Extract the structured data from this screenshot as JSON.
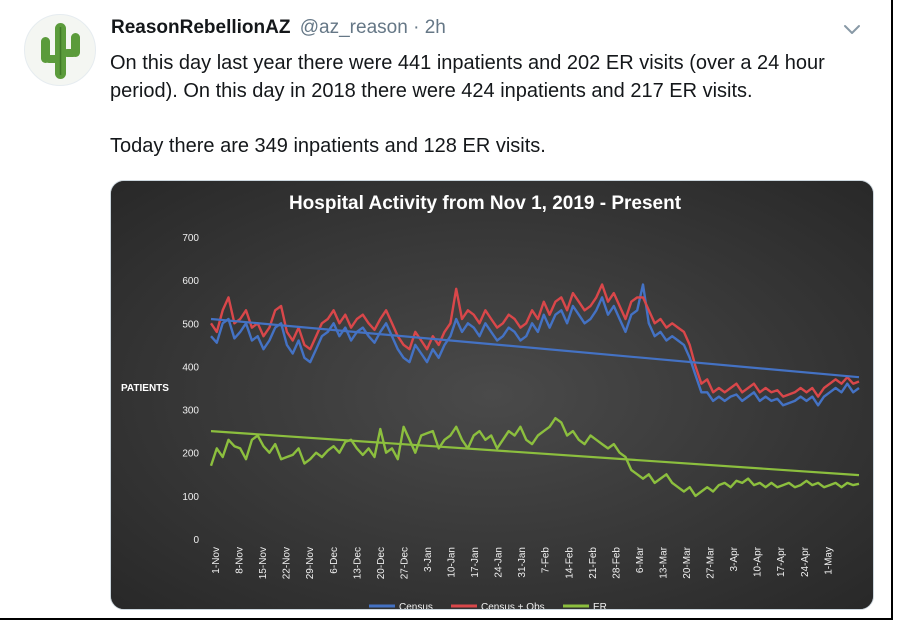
{
  "tweet": {
    "display_name": "ReasonRebellionAZ",
    "handle": "@az_reason",
    "separator": "·",
    "time": "2h",
    "text": "On this day last year there were 441 inpatients and 202 ER visits (over a 24 hour period). On this day in 2018 there were 424 inpatients and 217 ER visits.\n\nToday there are 349 inpatients and 128 ER visits.",
    "avatar_icon": "cactus-icon",
    "menu_icon": "chevron-down-icon"
  },
  "chart_data": {
    "type": "line",
    "title": "Hospital Activity from Nov 1, 2019 - Present",
    "ylabel": "PATIENTS",
    "xlabel": "",
    "ylim": [
      0,
      700
    ],
    "yticks": [
      0,
      100,
      200,
      300,
      400,
      500,
      600,
      700
    ],
    "xticks": [
      "1-Nov",
      "8-Nov",
      "15-Nov",
      "22-Nov",
      "29-Nov",
      "6-Dec",
      "13-Dec",
      "20-Dec",
      "27-Dec",
      "3-Jan",
      "10-Jan",
      "17-Jan",
      "24-Jan",
      "31-Jan",
      "7-Feb",
      "14-Feb",
      "21-Feb",
      "28-Feb",
      "6-Mar",
      "13-Mar",
      "20-Mar",
      "27-Mar",
      "3-Apr",
      "10-Apr",
      "17-Apr",
      "24-Apr",
      "1-May"
    ],
    "legend_position": "bottom",
    "legend": [
      "Census",
      "Census + Obs",
      "ER"
    ],
    "series": [
      {
        "name": "Census",
        "color": "#4472c4",
        "values": [
          470,
          455,
          500,
          510,
          465,
          480,
          500,
          460,
          470,
          440,
          460,
          490,
          500,
          450,
          430,
          460,
          420,
          410,
          440,
          470,
          480,
          500,
          470,
          490,
          460,
          480,
          490,
          470,
          455,
          480,
          500,
          470,
          440,
          420,
          410,
          450,
          430,
          410,
          440,
          420,
          450,
          470,
          510,
          480,
          500,
          490,
          470,
          500,
          480,
          460,
          470,
          490,
          480,
          460,
          470,
          500,
          480,
          520,
          490,
          520,
          530,
          500,
          540,
          520,
          500,
          510,
          530,
          560,
          520,
          540,
          510,
          480,
          520,
          530,
          590,
          500,
          470,
          480,
          460,
          470,
          460,
          450,
          420,
          380,
          340,
          340,
          320,
          330,
          320,
          330,
          335,
          320,
          330,
          340,
          320,
          330,
          320,
          325,
          310,
          315,
          320,
          330,
          320,
          330,
          310,
          330,
          340,
          350,
          340,
          360,
          340,
          350
        ]
      },
      {
        "name": "Census + Obs",
        "color": "#d9474a",
        "values": [
          500,
          480,
          530,
          560,
          500,
          510,
          530,
          490,
          500,
          470,
          490,
          530,
          540,
          480,
          460,
          490,
          450,
          440,
          470,
          500,
          510,
          530,
          500,
          520,
          490,
          510,
          520,
          500,
          485,
          510,
          530,
          500,
          470,
          450,
          440,
          480,
          460,
          440,
          470,
          450,
          480,
          500,
          580,
          510,
          530,
          520,
          500,
          530,
          510,
          490,
          500,
          520,
          510,
          490,
          500,
          530,
          510,
          550,
          520,
          550,
          560,
          530,
          570,
          550,
          530,
          540,
          560,
          590,
          550,
          570,
          540,
          510,
          550,
          560,
          560,
          530,
          500,
          510,
          490,
          500,
          490,
          480,
          450,
          400,
          360,
          370,
          340,
          350,
          340,
          350,
          360,
          340,
          350,
          360,
          340,
          350,
          340,
          345,
          330,
          335,
          340,
          350,
          340,
          350,
          330,
          350,
          360,
          370,
          360,
          375,
          360,
          365
        ]
      },
      {
        "name": "ER",
        "color": "#8cbf3e",
        "values": [
          170,
          210,
          190,
          230,
          215,
          210,
          185,
          230,
          240,
          215,
          200,
          220,
          185,
          190,
          195,
          210,
          175,
          185,
          200,
          190,
          205,
          215,
          200,
          225,
          230,
          210,
          195,
          210,
          190,
          255,
          200,
          210,
          185,
          260,
          230,
          200,
          240,
          245,
          250,
          210,
          230,
          240,
          260,
          230,
          210,
          240,
          250,
          230,
          240,
          210,
          230,
          250,
          240,
          260,
          230,
          220,
          240,
          250,
          260,
          280,
          270,
          240,
          250,
          230,
          220,
          240,
          230,
          220,
          210,
          220,
          200,
          190,
          160,
          150,
          140,
          150,
          130,
          140,
          150,
          130,
          120,
          110,
          120,
          100,
          110,
          120,
          110,
          125,
          130,
          120,
          135,
          130,
          140,
          125,
          130,
          120,
          130,
          120,
          125,
          130,
          120,
          125,
          135,
          125,
          130,
          120,
          125,
          130,
          120,
          130,
          125,
          128
        ]
      }
    ],
    "trendlines": [
      {
        "series": "Census",
        "start": 510,
        "end": 375
      },
      {
        "series": "ER",
        "start": 250,
        "end": 148
      }
    ]
  }
}
